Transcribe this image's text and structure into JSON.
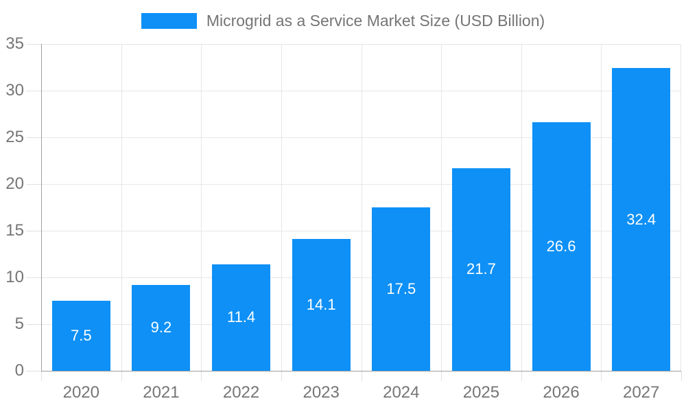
{
  "title": "Microgrid as a Service Market Size (USD Billion)",
  "colors": {
    "bar": "#0e90f6",
    "text": "#757575",
    "grid": "#e6e6e6",
    "axis": "#9e9e9e",
    "tick": "#e0e0e0",
    "value_label": "#ffffff",
    "background": "#ffffff"
  },
  "legend": {
    "position": "top-center",
    "swatch_color": "#0e90f6",
    "label": "Microgrid as a Service Market Size (USD Billion)"
  },
  "chart_data": {
    "type": "bar",
    "title": "Microgrid as a Service Market Size (USD Billion)",
    "categories": [
      "2020",
      "2021",
      "2022",
      "2023",
      "2024",
      "2025",
      "2026",
      "2027"
    ],
    "values": [
      7.5,
      9.2,
      11.4,
      14.1,
      17.5,
      21.7,
      26.6,
      32.4
    ],
    "value_labels": [
      "7.5",
      "9.2",
      "11.4",
      "14.1",
      "17.5",
      "21.7",
      "26.6",
      "32.4"
    ],
    "value_label_position": "inside-center",
    "xlabel": "",
    "ylabel": "",
    "ylim": [
      0,
      35
    ],
    "ytick_step": 5,
    "yticks": [
      0,
      5,
      10,
      15,
      20,
      25,
      30,
      35
    ],
    "grid": true,
    "legend_position": "top"
  }
}
